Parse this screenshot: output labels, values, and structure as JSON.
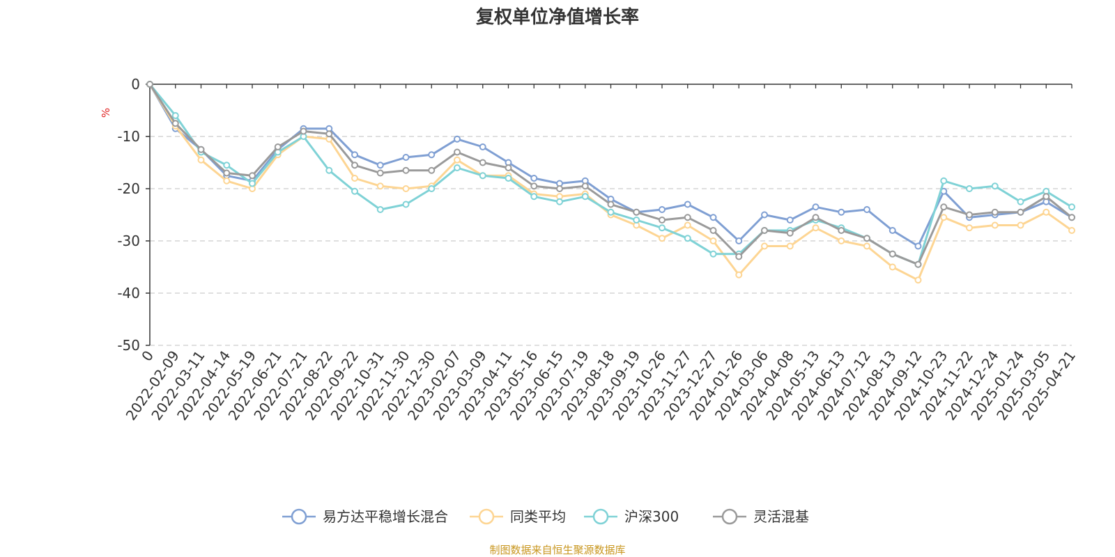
{
  "chart_data": {
    "type": "line",
    "title": "复权单位净值增长率",
    "ylabel": "%",
    "source_note": "制图数据来自恒生聚源数据库",
    "ylim": [
      -50,
      0
    ],
    "y_ticks": [
      "0",
      "-10",
      "-20",
      "-30",
      "-40",
      "-50"
    ],
    "grid": "horizontal dashed",
    "legend_position": "bottom-center",
    "x_tick_labels": [
      "0",
      "2022-02-09",
      "2022-03-11",
      "2022-04-14",
      "2022-05-19",
      "2022-06-21",
      "2022-07-21",
      "2022-08-22",
      "2022-09-22",
      "2022-10-31",
      "2022-11-30",
      "2022-12-30",
      "2023-02-07",
      "2023-03-09",
      "2023-04-11",
      "2023-05-16",
      "2023-06-15",
      "2023-07-19",
      "2023-08-18",
      "2023-09-19",
      "2023-10-26",
      "2023-11-27",
      "2023-12-27",
      "2024-01-26",
      "2024-03-06",
      "2024-04-08",
      "2024-05-13",
      "2024-06-13",
      "2024-07-12",
      "2024-08-13",
      "2024-09-12",
      "2024-10-23",
      "2024-11-22",
      "2024-12-24",
      "2025-01-24",
      "2025-03-05",
      "2025-04-21"
    ],
    "series": [
      {
        "name": "易方达平稳增长混合",
        "color": "#7f9fd3",
        "values": [
          0,
          -8.5,
          -12.5,
          -17.5,
          -18.5,
          -12.5,
          -8.5,
          -8.5,
          -13.5,
          -15.5,
          -14,
          -13.5,
          -10.5,
          -12,
          -15,
          -18,
          -19,
          -18.5,
          -22,
          -24.5,
          -24,
          -23,
          -25.5,
          -30,
          -25,
          -26,
          -23.5,
          -24.5,
          -24,
          -28,
          -31,
          -20.5,
          -25.5,
          -25,
          -24.5,
          -22.5,
          -25.5
        ]
      },
      {
        "name": "同类平均",
        "color": "#fdd593",
        "values": [
          0,
          -8,
          -14.5,
          -18.5,
          -20,
          -13.5,
          -10,
          -10.5,
          -18,
          -19.5,
          -20,
          -19.5,
          -14.5,
          -17.5,
          -17.5,
          -21,
          -21.5,
          -21,
          -25,
          -27,
          -29.5,
          -27,
          -30,
          -36.5,
          -31,
          -31,
          -27.5,
          -30,
          -31,
          -35,
          -37.5,
          -25.5,
          -27.5,
          -27,
          -27,
          -24.5,
          -28
        ]
      },
      {
        "name": "沪深300",
        "color": "#7fd2d6",
        "values": [
          0,
          -6,
          -13,
          -15.5,
          -19,
          -13,
          -10,
          -16.5,
          -20.5,
          -24,
          -23,
          -20,
          -16,
          -17.5,
          -18,
          -21.5,
          -22.5,
          -21.5,
          -24.5,
          -26,
          -27.5,
          -29.5,
          -32.5,
          -32.5,
          -28,
          -28,
          -26,
          -27.5,
          -29.5,
          -32.5,
          -34.5,
          -18.5,
          -20,
          -19.5,
          -22.5,
          -20.5,
          -23.5
        ]
      },
      {
        "name": "灵活混基",
        "color": "#9a9a9a",
        "values": [
          0,
          -7.5,
          -12.5,
          -17,
          -17.5,
          -12,
          -9,
          -9.5,
          -15.5,
          -17,
          -16.5,
          -16.5,
          -13,
          -15,
          -16,
          -19.5,
          -20,
          -19.5,
          -23,
          -24.5,
          -26,
          -25.5,
          -28,
          -33,
          -28,
          -28.5,
          -25.5,
          -28,
          -29.5,
          -32.5,
          -34.5,
          -23.5,
          -25,
          -24.5,
          -24.5,
          -21.5,
          -25.5
        ]
      }
    ]
  }
}
